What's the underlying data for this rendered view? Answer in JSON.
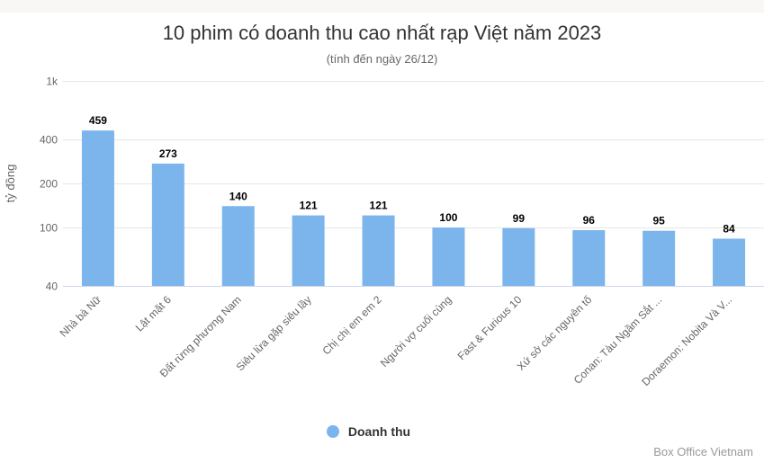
{
  "chart_data": {
    "type": "bar",
    "title": "10 phim có doanh thu cao nhất rạp Việt năm 2023",
    "subtitle": "(tính đến ngày 26/12)",
    "ylabel": "tỷ đồng",
    "xlabel": "",
    "y_scale": "log",
    "ylim": [
      40,
      1000
    ],
    "y_ticks": [
      40,
      100,
      200,
      400,
      1000
    ],
    "y_tick_labels": [
      "40",
      "100",
      "200",
      "400",
      "1k"
    ],
    "categories": [
      "Nhà bà Nữ",
      "Lật mặt 6",
      "Đất rừng phương Nam",
      "Siêu lừa gặp siêu lầy",
      "Chị chị em em 2",
      "Người vợ cuối cùng",
      "Fast & Furious 10",
      "Xứ sở các nguyên tố",
      "Conan: Tàu Ngầm Sắt ...",
      "Doraemon: Nobita Và V..."
    ],
    "series": [
      {
        "name": "Doanh thu",
        "values": [
          459,
          273,
          140,
          121,
          121,
          100,
          99,
          96,
          95,
          84
        ]
      }
    ],
    "data_labels": [
      "459",
      "273",
      "140",
      "121",
      "121",
      "100",
      "99",
      "96",
      "95",
      "84"
    ],
    "grid": true,
    "legend_position": "bottom",
    "bar_color": "#7cb5ec",
    "credits": "Box Office Vietnam"
  }
}
